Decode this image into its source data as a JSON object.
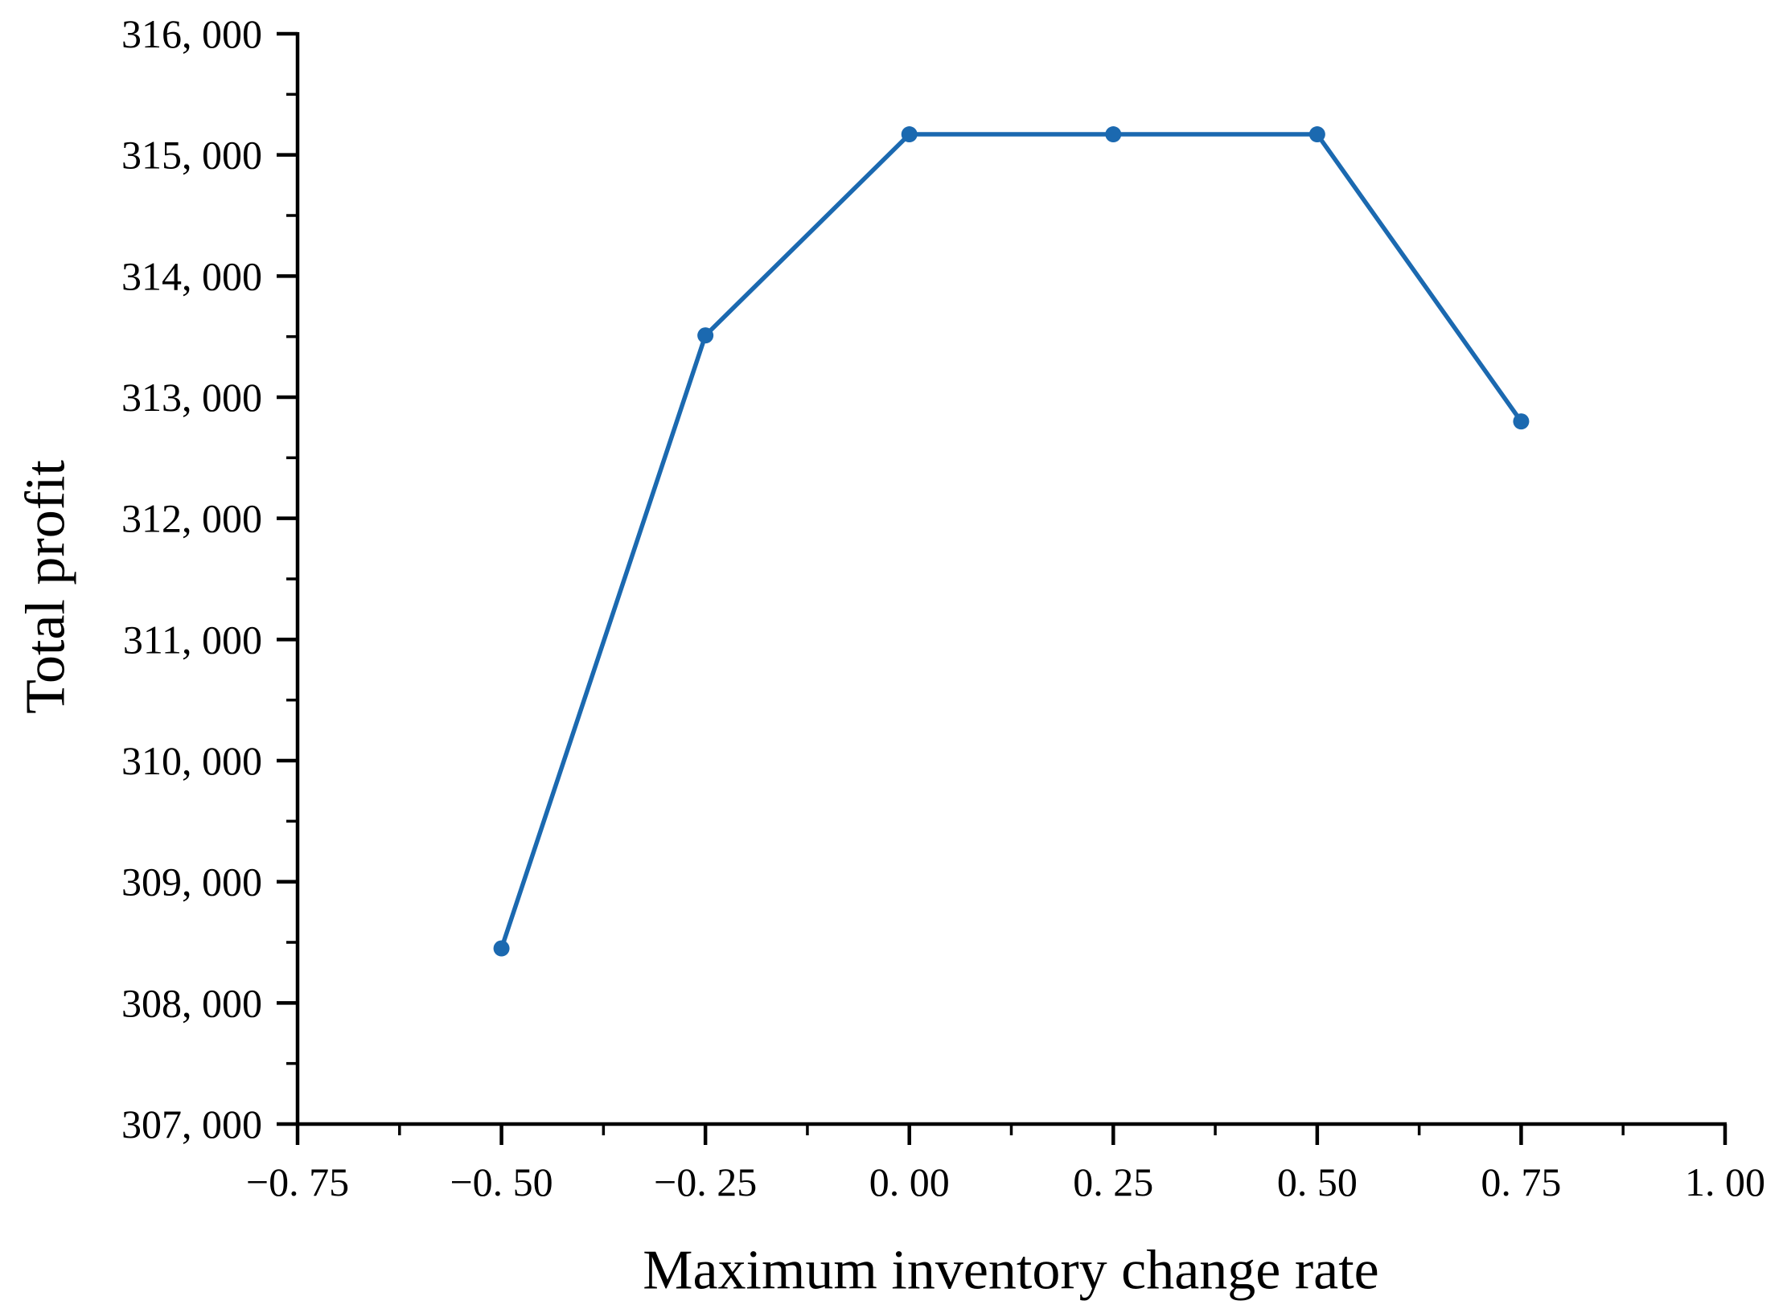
{
  "figure": {
    "background_color": "#ffffff",
    "text_color": "#000000",
    "axis_color": "#000000"
  },
  "chart_data": {
    "type": "line",
    "title": "",
    "xlabel": "Maximum inventory change rate",
    "ylabel": "Total profit",
    "x": [
      -0.5,
      -0.25,
      0.0,
      0.25,
      0.5,
      0.75
    ],
    "y": [
      308450,
      313510,
      315170,
      315170,
      315170,
      312800
    ],
    "line_color": "#1b69b0",
    "marker": "circle",
    "grid": false,
    "legend_position": "none",
    "xlim": [
      -0.75,
      1.0
    ],
    "ylim": [
      307000,
      316000
    ],
    "x_major_ticks": [
      {
        "value": -0.75,
        "label": "−0. 75"
      },
      {
        "value": -0.5,
        "label": "−0. 50"
      },
      {
        "value": -0.25,
        "label": "−0. 25"
      },
      {
        "value": 0.0,
        "label": "0. 00"
      },
      {
        "value": 0.25,
        "label": "0. 25"
      },
      {
        "value": 0.5,
        "label": "0. 50"
      },
      {
        "value": 0.75,
        "label": "0. 75"
      },
      {
        "value": 1.0,
        "label": "1. 00"
      }
    ],
    "x_minor_ticks": [
      -0.625,
      -0.375,
      -0.125,
      0.125,
      0.375,
      0.625,
      0.875
    ],
    "y_major_ticks": [
      {
        "value": 307000,
        "label": "307, 000"
      },
      {
        "value": 308000,
        "label": "308, 000"
      },
      {
        "value": 309000,
        "label": "309, 000"
      },
      {
        "value": 310000,
        "label": "310, 000"
      },
      {
        "value": 311000,
        "label": "311, 000"
      },
      {
        "value": 312000,
        "label": "312, 000"
      },
      {
        "value": 313000,
        "label": "313, 000"
      },
      {
        "value": 314000,
        "label": "314, 000"
      },
      {
        "value": 315000,
        "label": "315, 000"
      },
      {
        "value": 316000,
        "label": "316, 000"
      }
    ],
    "y_minor_ticks": [
      307500,
      308500,
      309500,
      310500,
      311500,
      312500,
      313500,
      314500,
      315500
    ]
  }
}
